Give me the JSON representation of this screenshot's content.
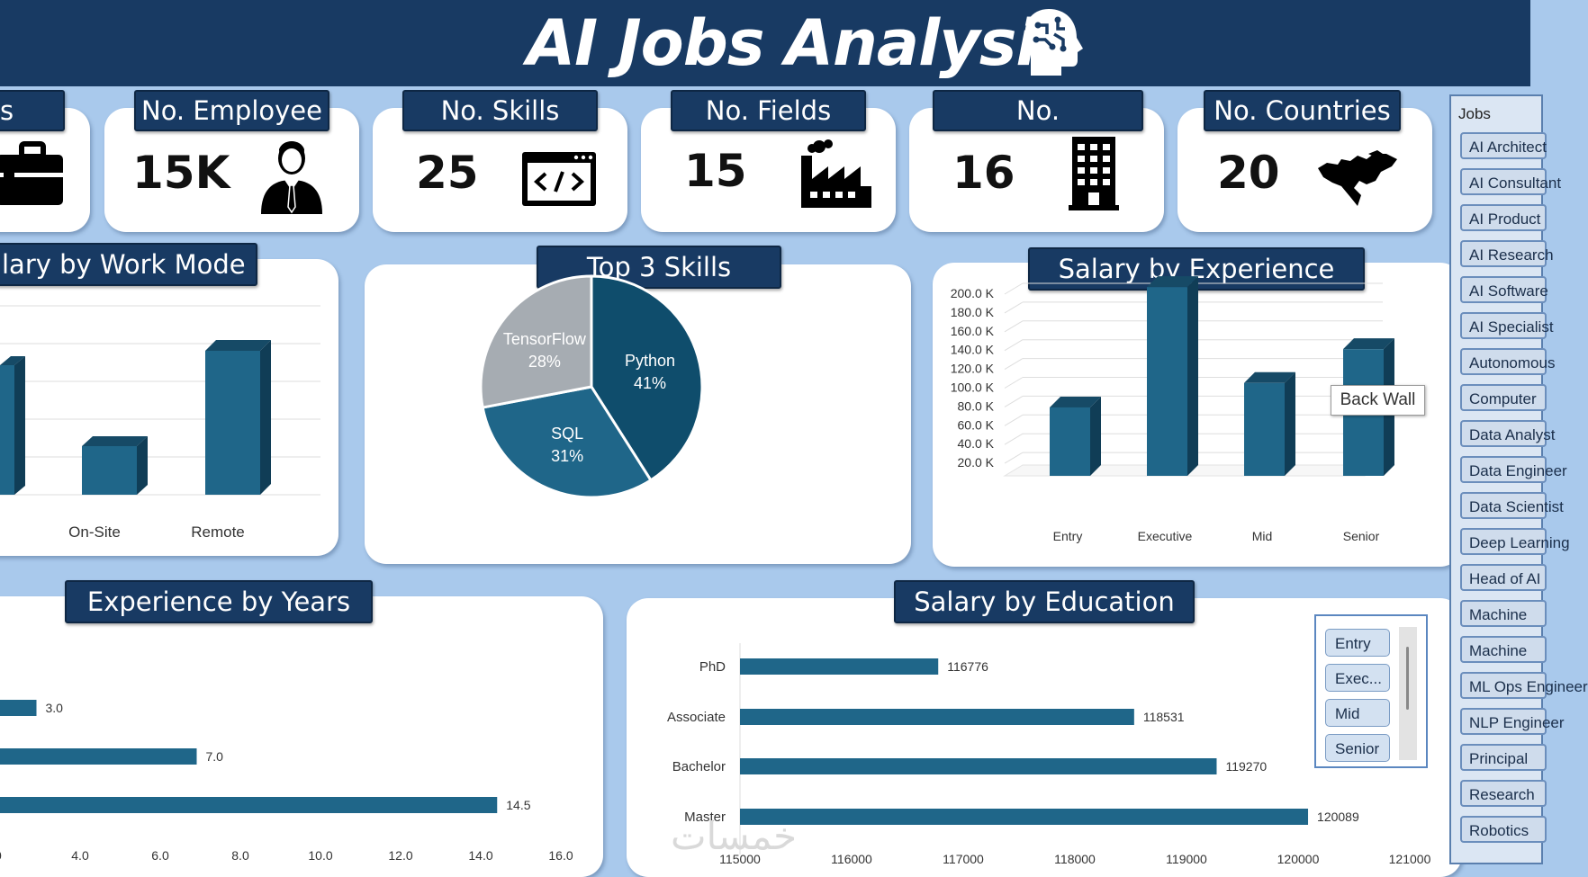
{
  "header": {
    "title": "AI Jobs Analysis",
    "icon": "brain-head-icon"
  },
  "kpis": [
    {
      "label": "s",
      "value": "",
      "icon": "briefcase-icon"
    },
    {
      "label": "No. Employee",
      "value": "15K",
      "icon": "employee-icon"
    },
    {
      "label": "No. Skills",
      "value": "25",
      "icon": "code-window-icon"
    },
    {
      "label": "No. Fields",
      "value": "15",
      "icon": "factory-icon"
    },
    {
      "label": "No.",
      "value": "16",
      "icon": "building-icon"
    },
    {
      "label": "No. Countries",
      "value": "20",
      "icon": "world-map-icon"
    }
  ],
  "colors": {
    "header": "#183a63",
    "bar": "#1f6689",
    "background": "#a9c9ec",
    "pie_python": "#0f4d6c",
    "pie_sql": "#1f6689",
    "pie_tensorflow": "#a6acb2"
  },
  "work_mode": {
    "title": "lary by Work Mode",
    "chart_data": {
      "type": "bar",
      "categories": [
        "",
        "On-Site",
        "Remote"
      ],
      "values": [
        null,
        null,
        null
      ]
    }
  },
  "skills": {
    "title": "Top 3 Skills",
    "chart_data": {
      "type": "pie",
      "labels": [
        "Python",
        "SQL",
        "TensorFlow"
      ],
      "values": [
        41,
        31,
        28
      ],
      "value_labels": [
        "41%",
        "31%",
        "28%"
      ]
    }
  },
  "experience_salary": {
    "title": "Salary by Experience",
    "tooltip": "Back Wall",
    "chart_data": {
      "type": "bar",
      "categories": [
        "Entry",
        "Executive",
        "Mid",
        "Senior"
      ],
      "values": [
        68000,
        196000,
        94000,
        130000
      ],
      "y_ticks": [
        "20.0 K",
        "40.0 K",
        "60.0 K",
        "80.0 K",
        "100.0 K",
        "120.0 K",
        "140.0 K",
        "160.0 K",
        "180.0 K",
        "200.0 K"
      ],
      "ylim": [
        0,
        200000
      ]
    }
  },
  "experience_years": {
    "title": "Experience by Years",
    "chart_data": {
      "type": "bar",
      "orientation": "horizontal",
      "values": [
        3.0,
        7.0,
        14.5
      ],
      "value_labels": [
        "3.0",
        "7.0",
        "14.5"
      ],
      "x_ticks": [
        ".0",
        "4.0",
        "6.0",
        "8.0",
        "10.0",
        "12.0",
        "14.0",
        "16.0"
      ],
      "xlim": [
        2,
        16
      ]
    }
  },
  "education_salary": {
    "title": "Salary by Education",
    "chart_data": {
      "type": "bar",
      "orientation": "horizontal",
      "categories": [
        "PhD",
        "Associate",
        "Bachelor",
        "Master"
      ],
      "values": [
        116776,
        118531,
        119270,
        120089
      ],
      "value_labels": [
        "116776",
        "118531",
        "119270",
        "120089"
      ],
      "x_ticks": [
        "115000",
        "116000",
        "117000",
        "118000",
        "119000",
        "120000",
        "121000"
      ],
      "xlim": [
        115000,
        121000
      ]
    },
    "legend": [
      "Entry",
      "Exec...",
      "Mid",
      "Senior"
    ]
  },
  "jobs_slicer": {
    "header": "Jobs",
    "items": [
      "AI Architect",
      "AI Consultant",
      "AI Product",
      "AI Research",
      "AI Software",
      "AI Specialist",
      "Autonomous",
      "Computer",
      "Data Analyst",
      "Data Engineer",
      "Data Scientist",
      "Deep Learning",
      "Head of AI",
      "Machine",
      "Machine",
      "ML Ops Engineer",
      "NLP Engineer",
      "Principal",
      "Research",
      "Robotics"
    ]
  },
  "watermark": "خمسات"
}
